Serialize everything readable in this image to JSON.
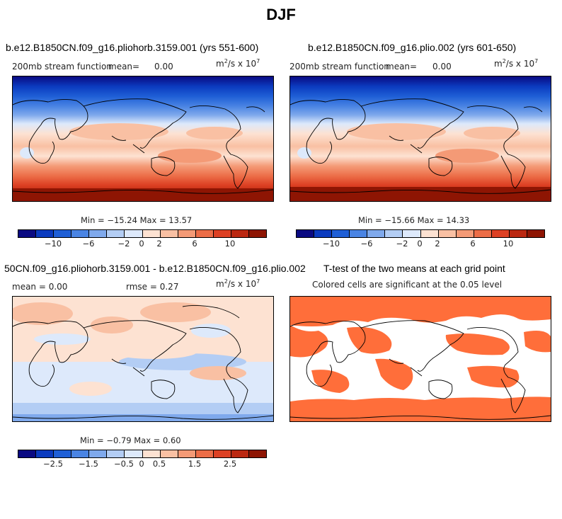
{
  "title": "DJF",
  "panels": {
    "p1": {
      "title": "b.e12.B1850CN.f09_g16.pliohorb.3159.001 (yrs 551-600)",
      "left_label": "200mb stream function",
      "mean_label": "mean=",
      "mean_value": "0.00",
      "units_base": "m",
      "units_exp1": "2",
      "units_mid": "/s x 10",
      "units_exp2": "7",
      "stats": "Min = −15.24 Max = 13.57",
      "colorbar_ticks": [
        "−10",
        "−6",
        "−2",
        "0",
        "2",
        "6",
        "10"
      ]
    },
    "p2": {
      "title": "b.e12.B1850CN.f09_g16.plio.002 (yrs 601-650)",
      "left_label": "200mb stream function",
      "mean_label": "mean=",
      "mean_value": "0.00",
      "units_base": "m",
      "units_exp1": "2",
      "units_mid": "/s x 10",
      "units_exp2": "7",
      "stats": "Min = −15.66 Max = 14.33",
      "colorbar_ticks": [
        "−10",
        "−6",
        "−2",
        "0",
        "2",
        "6",
        "10"
      ]
    },
    "p3": {
      "title": "50CN.f09_g16.pliohorb.3159.001 - b.e12.B1850CN.f09_g16.plio.002",
      "mean_text": "mean =   0.00",
      "rmse_text": "rmse =   0.27",
      "units_base": "m",
      "units_exp1": "2",
      "units_mid": "/s x 10",
      "units_exp2": "7",
      "stats": "Min = −0.79 Max =   0.60",
      "colorbar_ticks": [
        "−2.5",
        "−1.5",
        "−0.5",
        "0",
        "0.5",
        "1.5",
        "2.5"
      ]
    },
    "p4": {
      "title": "T-test of the two means at each grid point",
      "subtitle": "Colored cells are significant at the 0.05 level"
    }
  },
  "colors": {
    "colorbar": [
      "#0a0a82",
      "#0b3bbf",
      "#1f5fd6",
      "#4a84e3",
      "#7fa9ec",
      "#b3cdf4",
      "#dde9fb",
      "#fde2d2",
      "#f9c0a3",
      "#f49a76",
      "#ec6d47",
      "#dd4124",
      "#bb2811",
      "#8e1503"
    ],
    "significance": "#ff6e3a",
    "coast": "#000000"
  }
}
